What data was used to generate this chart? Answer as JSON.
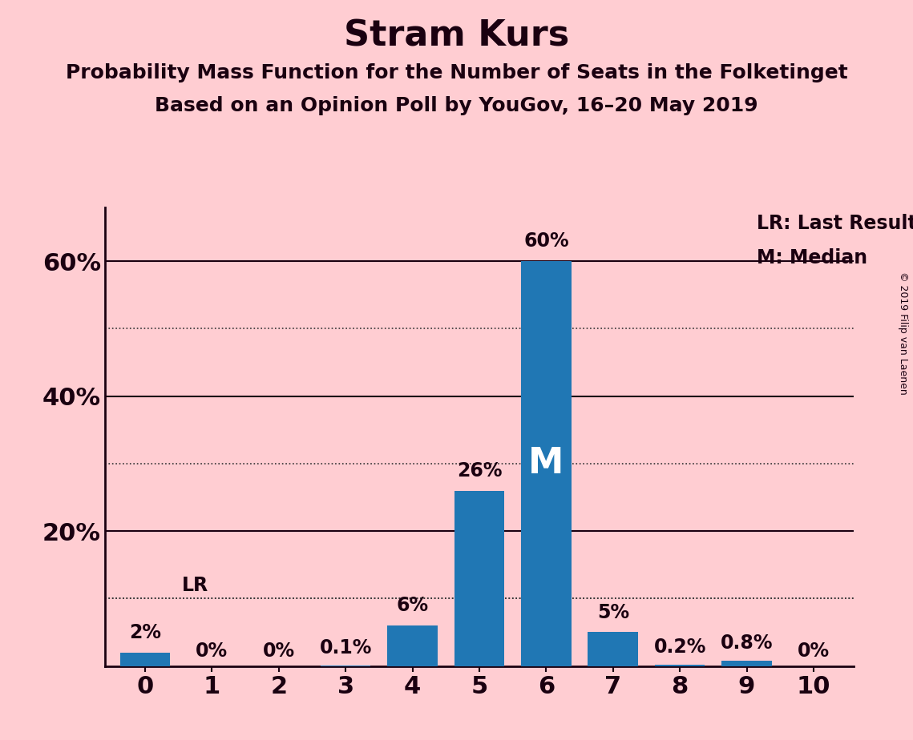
{
  "title": "Stram Kurs",
  "subtitle1": "Probability Mass Function for the Number of Seats in the Folketinget",
  "subtitle2": "Based on an Opinion Poll by YouGov, 16–20 May 2019",
  "copyright": "© 2019 Filip van Laenen",
  "seats": [
    0,
    1,
    2,
    3,
    4,
    5,
    6,
    7,
    8,
    9,
    10
  ],
  "values": [
    2.0,
    0.0,
    0.0,
    0.1,
    6.0,
    26.0,
    60.0,
    5.0,
    0.2,
    0.8,
    0.0
  ],
  "labels": [
    "2%",
    "0%",
    "0%",
    "0.1%",
    "6%",
    "26%",
    "60%",
    "5%",
    "0.2%",
    "0.8%",
    "0%"
  ],
  "bar_color": "#2077B4",
  "background_color": "#FFCDD2",
  "last_result_seat": 0,
  "last_result_level": 10,
  "median_seat": 6,
  "ylim": [
    0,
    68
  ],
  "yticks_major": [
    0,
    20,
    40,
    60
  ],
  "ytick_labels": [
    "",
    "20%",
    "40%",
    "60%"
  ],
  "yticks_minor": [
    10,
    30,
    50
  ],
  "title_fontsize": 32,
  "subtitle_fontsize": 18,
  "label_fontsize": 17,
  "tick_fontsize": 22,
  "legend_fontsize": 17,
  "median_fontsize": 32,
  "spine_color": "#1a0010",
  "grid_major_color": "#1a0010",
  "grid_minor_color": "#333333",
  "text_color": "#1a0010"
}
